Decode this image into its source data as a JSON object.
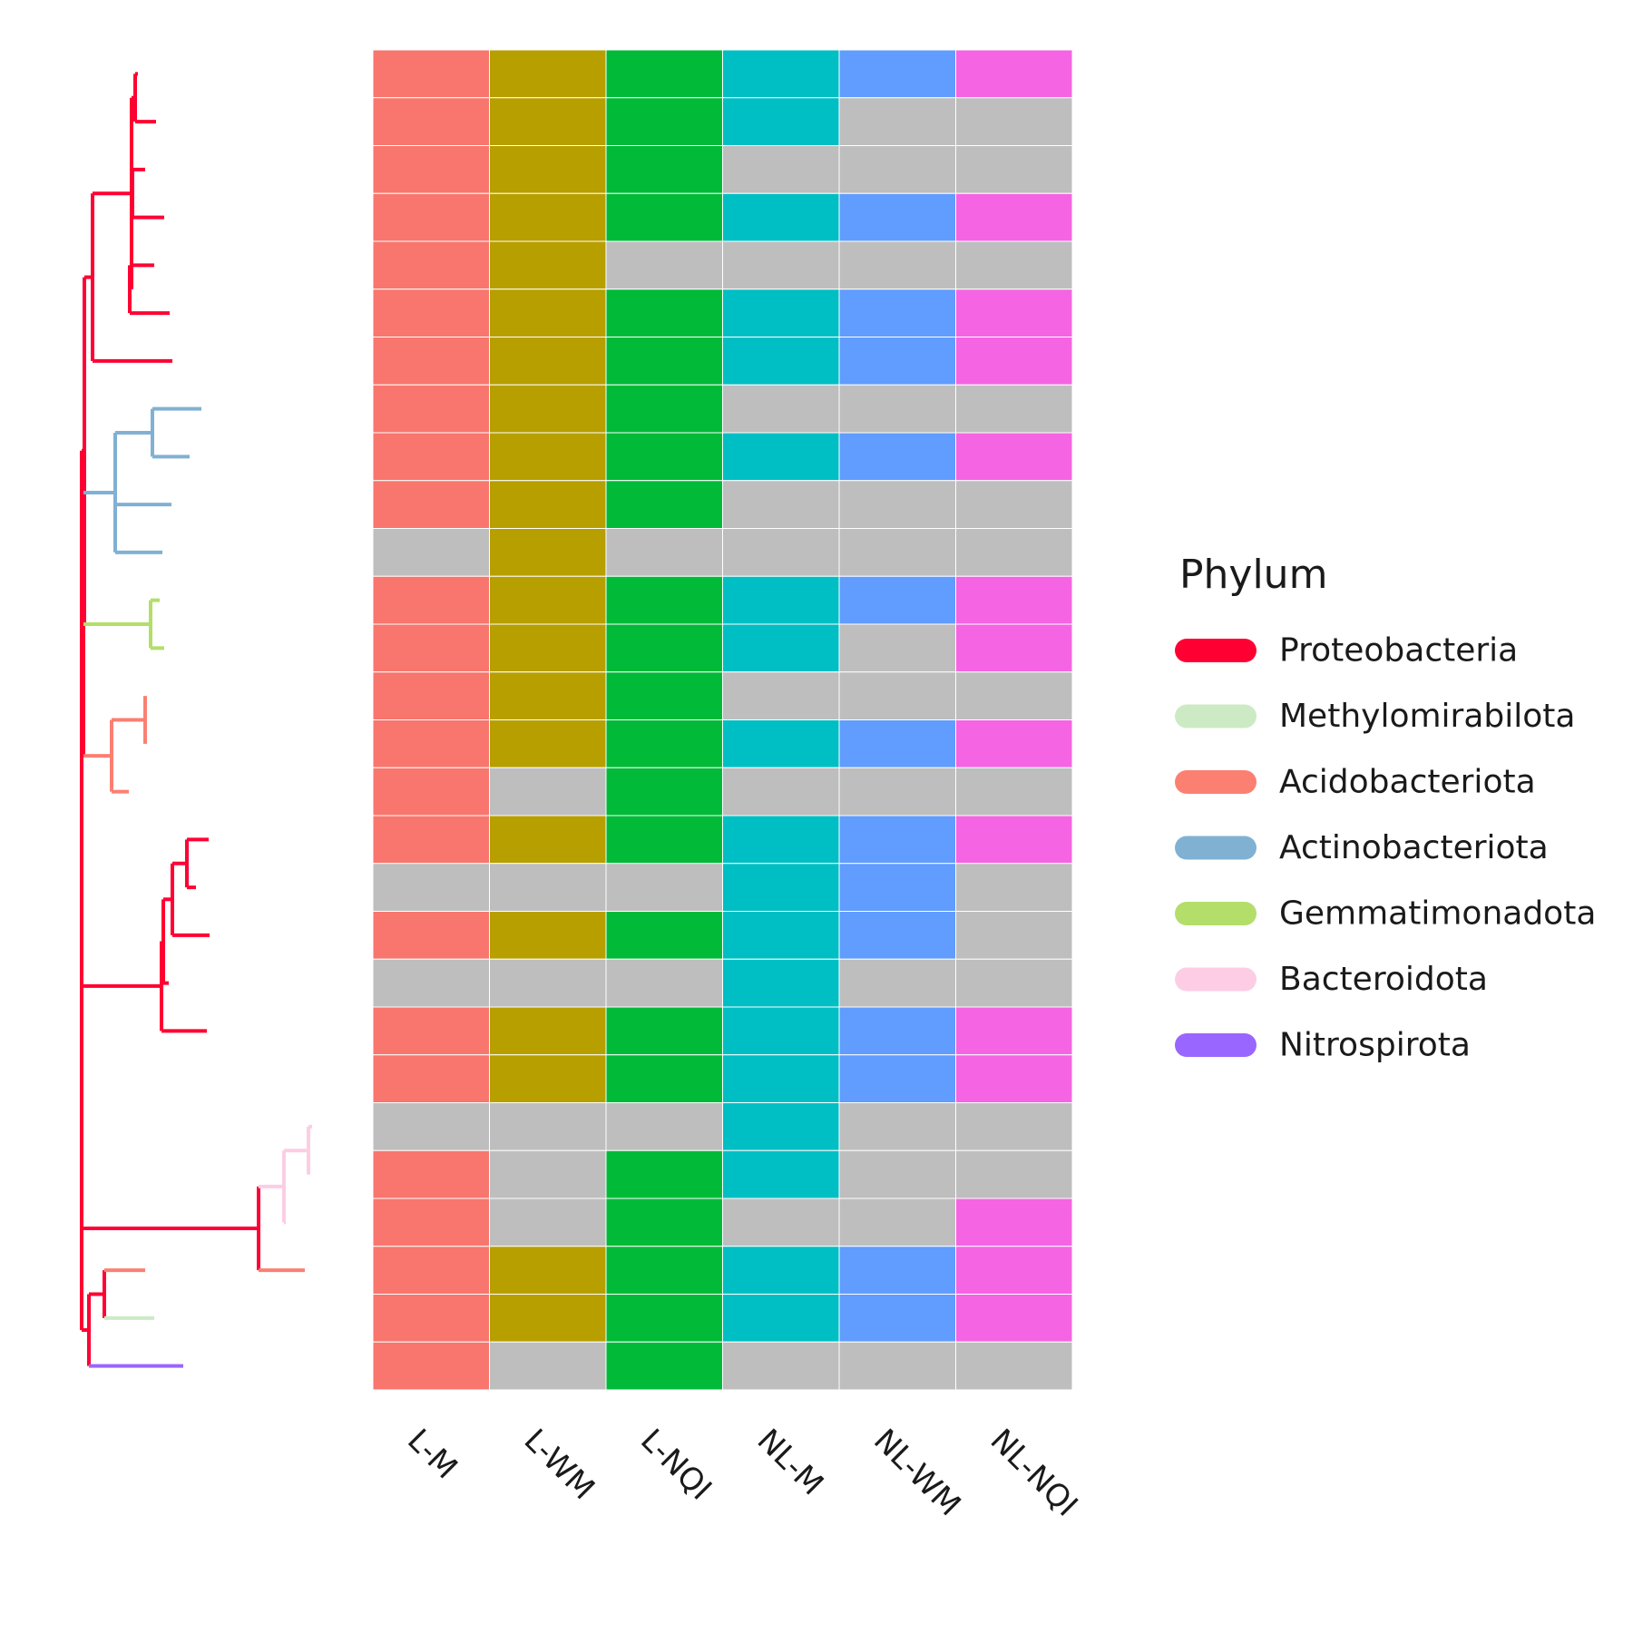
{
  "chart_data": {
    "type": "heatmap",
    "columns": [
      "L-M",
      "L-WM",
      "L-NQI",
      "NL-M",
      "NL-WM",
      "NL-NQI"
    ],
    "column_colors": [
      "#F8766D",
      "#B79F00",
      "#00BA38",
      "#00BFC4",
      "#619CFF",
      "#F564E3"
    ],
    "absent_color": "#BEBEBE",
    "matrix": [
      [
        1,
        1,
        1,
        1,
        1,
        1
      ],
      [
        1,
        1,
        1,
        1,
        0,
        0
      ],
      [
        1,
        1,
        1,
        0,
        0,
        0
      ],
      [
        1,
        1,
        1,
        1,
        1,
        1
      ],
      [
        1,
        1,
        0,
        0,
        0,
        0
      ],
      [
        1,
        1,
        1,
        1,
        1,
        1
      ],
      [
        1,
        1,
        1,
        1,
        1,
        1
      ],
      [
        1,
        1,
        1,
        0,
        0,
        0
      ],
      [
        1,
        1,
        1,
        1,
        1,
        1
      ],
      [
        1,
        1,
        1,
        0,
        0,
        0
      ],
      [
        0,
        1,
        0,
        0,
        0,
        0
      ],
      [
        1,
        1,
        1,
        1,
        1,
        1
      ],
      [
        1,
        1,
        1,
        1,
        0,
        1
      ],
      [
        1,
        1,
        1,
        0,
        0,
        0
      ],
      [
        1,
        1,
        1,
        1,
        1,
        1
      ],
      [
        1,
        0,
        1,
        0,
        0,
        0
      ],
      [
        1,
        1,
        1,
        1,
        1,
        1
      ],
      [
        0,
        0,
        0,
        1,
        1,
        0
      ],
      [
        1,
        1,
        1,
        1,
        1,
        0
      ],
      [
        0,
        0,
        0,
        1,
        0,
        0
      ],
      [
        1,
        1,
        1,
        1,
        1,
        1
      ],
      [
        1,
        1,
        1,
        1,
        1,
        1
      ],
      [
        0,
        0,
        0,
        1,
        0,
        0
      ],
      [
        1,
        0,
        1,
        1,
        0,
        0
      ],
      [
        1,
        0,
        1,
        0,
        0,
        1
      ],
      [
        1,
        1,
        1,
        1,
        1,
        1
      ],
      [
        1,
        1,
        1,
        1,
        1,
        1
      ],
      [
        1,
        0,
        1,
        0,
        0,
        0
      ]
    ],
    "row_phylum": [
      "Proteobacteria",
      "Proteobacteria",
      "Proteobacteria",
      "Proteobacteria",
      "Proteobacteria",
      "Proteobacteria",
      "Proteobacteria",
      "Actinobacteriota",
      "Actinobacteriota",
      "Actinobacteriota",
      "Actinobacteriota",
      "Gemmatimonadota",
      "Gemmatimonadota",
      "Acidobacteriota",
      "Acidobacteriota",
      "Acidobacteriota",
      "Proteobacteria",
      "Proteobacteria",
      "Proteobacteria",
      "Proteobacteria",
      "Proteobacteria",
      "Proteobacteria",
      "Bacteroidota",
      "Bacteroidota",
      "Bacteroidota",
      "Acidobacteriota",
      "Methylomirabilota",
      "Nitrospirota"
    ],
    "legend": {
      "title": "Phylum",
      "entries": [
        {
          "name": "Proteobacteria",
          "color": "#FF0033"
        },
        {
          "name": "Methylomirabilota",
          "color": "#CCEBC5"
        },
        {
          "name": "Acidobacteriota",
          "color": "#FB8072"
        },
        {
          "name": "Actinobacteriota",
          "color": "#80B1D3"
        },
        {
          "name": "Gemmatimonadota",
          "color": "#B3DE69"
        },
        {
          "name": "Bacteroidota",
          "color": "#FCCDE5"
        },
        {
          "name": "Nitrospirota",
          "color": "#9966FF"
        }
      ]
    }
  }
}
